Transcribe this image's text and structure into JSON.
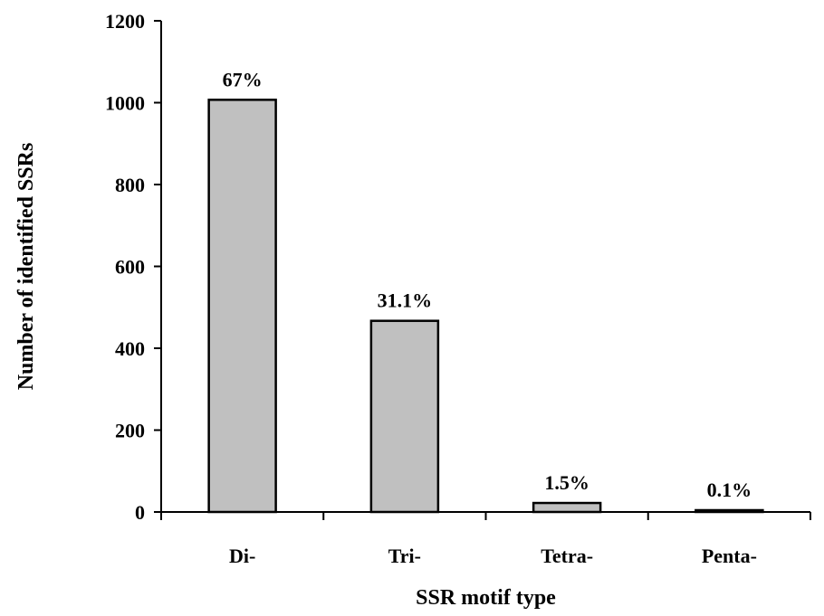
{
  "chart_data": {
    "type": "bar",
    "title": "",
    "xlabel": "SSR motif type",
    "ylabel": "Number of identified SSRs",
    "categories": [
      "Di-",
      "Tri-",
      "Tetra-",
      "Penta-"
    ],
    "values": [
      1007,
      467,
      22,
      2
    ],
    "data_labels": [
      "67%",
      "31.1%",
      "1.5%",
      "0.1%"
    ],
    "ylim": [
      0,
      1200
    ],
    "yticks": [
      0,
      200,
      400,
      600,
      800,
      1000,
      1200
    ],
    "ytick_labels": [
      "0",
      "200",
      "400",
      "600",
      "800",
      "1000",
      "1200"
    ],
    "grid": false,
    "legend": "none",
    "colors": {
      "bar_fill": "#c0c0c0",
      "bar_stroke": "#000000",
      "axis": "#000000",
      "background": "#ffffff"
    }
  }
}
